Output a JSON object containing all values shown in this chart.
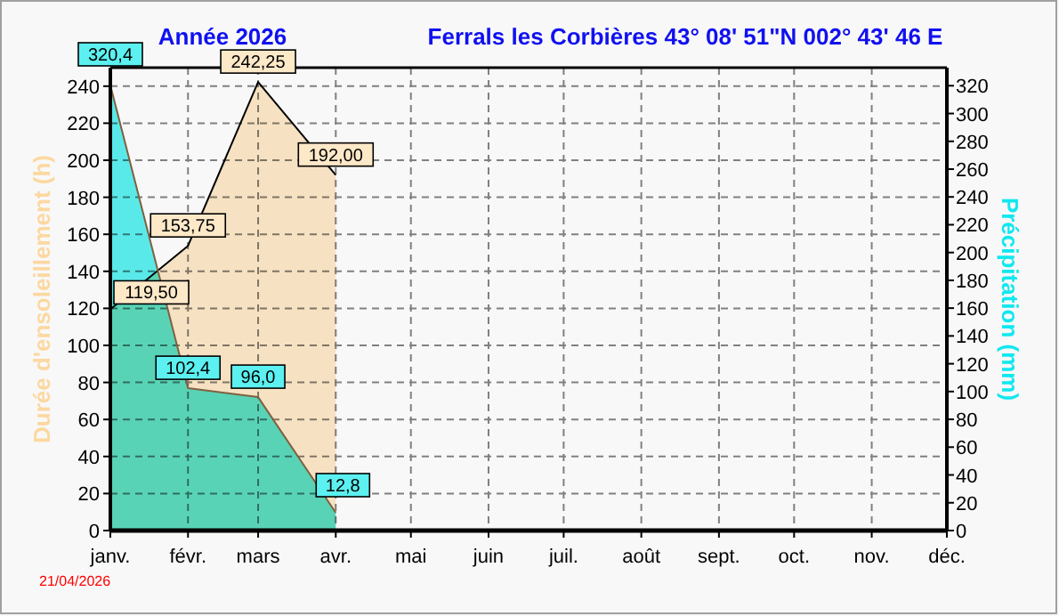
{
  "chart_data": {
    "type": "area",
    "title": "Année  2026",
    "subtitle": "Ferrals les Corbières 43° 08' 51\"N  002° 43' 46 E",
    "ylabel": "Durée d'ensoleillement  (h)",
    "y2label": "Précipitation  (mm)",
    "x": [
      "2026-01-01",
      "2026-02-01",
      "2026-03-01",
      "2026-04-01"
    ],
    "series": [
      {
        "color": "#fde8c8",
        "values": [
          119.5,
          153.75,
          242.25,
          192
        ],
        "value_labels": [
          "119,50",
          "153,75",
          "242,25",
          "192,00"
        ]
      },
      {
        "color": "#5cf0f0",
        "axis": "y2",
        "values": [
          320.4,
          102.4,
          96.0,
          12.8
        ],
        "value_labels": [
          "320,4",
          "102,4",
          "96,0",
          "12,8"
        ]
      }
    ],
    "xlim": [
      "2026-01-01",
      "2026-12-01"
    ],
    "xticks": [
      {
        "value": "2026-01-01",
        "label": "janv."
      },
      {
        "value": "2026-02-01",
        "label": "févr."
      },
      {
        "value": "2026-03-01",
        "label": "mars"
      },
      {
        "value": "2026-04-01",
        "label": "avr."
      },
      {
        "value": "2026-05-01",
        "label": "mai"
      },
      {
        "value": "2026-06-01",
        "label": "juin"
      },
      {
        "value": "2026-07-01",
        "label": "juil."
      },
      {
        "value": "2026-08-01",
        "label": "août"
      },
      {
        "value": "2026-09-01",
        "label": "sept."
      },
      {
        "value": "2026-10-01",
        "label": "oct."
      },
      {
        "value": "2026-11-01",
        "label": "nov."
      },
      {
        "value": "2026-12-01",
        "label": "déc."
      }
    ],
    "ylim": [
      0,
      250
    ],
    "yticks": [
      0,
      20,
      40,
      60,
      80,
      100,
      120,
      140,
      160,
      180,
      200,
      220,
      240
    ],
    "y2lim": [
      0,
      333
    ],
    "y2ticks": [
      0,
      20,
      40,
      60,
      80,
      100,
      120,
      140,
      160,
      180,
      200,
      220,
      240,
      260,
      280,
      300,
      320
    ],
    "grid": true,
    "annotations": [
      "21/04/2026"
    ]
  }
}
